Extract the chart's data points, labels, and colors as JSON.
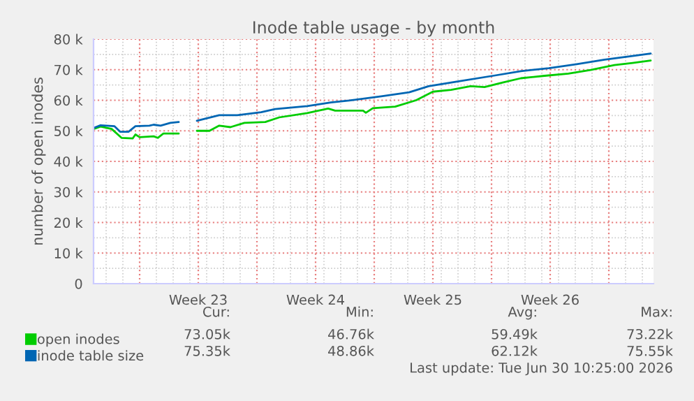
{
  "chart_data": {
    "type": "line",
    "title": "Inode table usage - by month",
    "ylabel": "number of open inodes",
    "xlim": [
      "2026-05-29T06:00",
      "2026-07-01T16:00"
    ],
    "xticks": [
      {
        "value": "2026-06-01",
        "label": null
      },
      {
        "value": "2026-06-04T12:00",
        "label": "Week 23"
      },
      {
        "value": "2026-06-08",
        "label": null
      },
      {
        "value": "2026-06-11T12:00",
        "label": "Week 24"
      },
      {
        "value": "2026-06-15",
        "label": null
      },
      {
        "value": "2026-06-18T12:00",
        "label": "Week 25"
      },
      {
        "value": "2026-06-22",
        "label": null
      },
      {
        "value": "2026-06-25T12:00",
        "label": "Week 26"
      },
      {
        "value": "2026-06-29",
        "label": null
      }
    ],
    "ylim": [
      0,
      80000
    ],
    "yticks": [
      0,
      {
        "value": 10000,
        "label": "10 k"
      },
      {
        "value": 20000,
        "label": "20 k"
      },
      {
        "value": 30000,
        "label": "30 k"
      },
      {
        "value": 40000,
        "label": "40 k"
      },
      {
        "value": 50000,
        "label": "50 k"
      },
      {
        "value": 60000,
        "label": "60 k"
      },
      {
        "value": 70000,
        "label": "70 k"
      },
      {
        "value": 80000,
        "label": "80 k"
      }
    ],
    "grid": true,
    "legend": "bottom left",
    "marker": "none",
    "line_style": "solid",
    "series": [
      {
        "name": "open inodes",
        "color": "#00cc00",
        "x": [
          "2026-05-29T06:00",
          "2026-05-29T16:00",
          "2026-05-30T08:00",
          "2026-05-30T22:00",
          "2026-05-31T14:00",
          "2026-05-31T18:00",
          "2026-06-01T00:00",
          "2026-06-01T20:00",
          "2026-06-02T02:00",
          "2026-06-02T10:00",
          "2026-06-03T08:00",
          "2026-06-03T20:00",
          "2026-06-04T10:00",
          "2026-06-05T04:00",
          "2026-06-05T18:00",
          "2026-06-06T10:00",
          "2026-06-07T06:00",
          "2026-06-08T12:00",
          "2026-06-09T08:00",
          "2026-06-11T00:00",
          "2026-06-12T06:00",
          "2026-06-12T16:00",
          "2026-06-14T08:00",
          "2026-06-14T12:00",
          "2026-06-14T22:00",
          "2026-06-16T06:00",
          "2026-06-17T12:00",
          "2026-06-18T12:00",
          "2026-06-19T14:00",
          "2026-06-20T18:00",
          "2026-06-21T14:00",
          "2026-06-22T16:00",
          "2026-06-23T18:00",
          "2026-06-25T04:00",
          "2026-06-26T14:00",
          "2026-06-27T22:00",
          "2026-06-29T08:00",
          "2026-06-30T10:00",
          "2026-07-01T12:00"
        ],
        "values": [
          50600,
          51400,
          50600,
          47700,
          47500,
          48800,
          47900,
          48200,
          47700,
          49100,
          49100,
          null,
          50000,
          50000,
          51700,
          51200,
          52600,
          52900,
          54400,
          55800,
          57300,
          56600,
          56600,
          55900,
          57400,
          57900,
          60000,
          62800,
          63400,
          64600,
          64300,
          65800,
          67200,
          68000,
          68700,
          69900,
          71500,
          72200,
          73000
        ]
      },
      {
        "name": "inode table size",
        "color": "#0066b3",
        "x": [
          "2026-05-29T06:00",
          "2026-05-29T16:00",
          "2026-05-30T12:00",
          "2026-05-30T20:00",
          "2026-05-31T08:00",
          "2026-05-31T18:00",
          "2026-06-01T14:00",
          "2026-06-01T20:00",
          "2026-06-02T06:00",
          "2026-06-02T20:00",
          "2026-06-03T08:00",
          "2026-06-03T20:00",
          "2026-06-04T10:00",
          "2026-06-05T18:00",
          "2026-06-06T20:00",
          "2026-06-08T06:00",
          "2026-06-09T02:00",
          "2026-06-11T00:00",
          "2026-06-12T10:00",
          "2026-06-13T12:00",
          "2026-06-15T10:00",
          "2026-06-17T02:00",
          "2026-06-18T06:00",
          "2026-06-19T22:00",
          "2026-06-22T02:00",
          "2026-06-23T18:00",
          "2026-06-25T10:00",
          "2026-06-27T02:00",
          "2026-06-28T18:00",
          "2026-06-30T10:00",
          "2026-07-01T12:00"
        ],
        "values": [
          50900,
          51800,
          51500,
          49700,
          49700,
          51500,
          51700,
          52000,
          51700,
          52600,
          52900,
          null,
          53300,
          55100,
          55100,
          56100,
          57100,
          58100,
          59300,
          59900,
          61300,
          62600,
          64600,
          66100,
          68000,
          69500,
          70500,
          71800,
          73300,
          74500,
          75300
        ]
      }
    ],
    "annotations": [
      "Cur:",
      "Min:",
      "Avg:",
      "Max:",
      "73.05k",
      "46.76k",
      "59.49k",
      "73.22k",
      "75.35k",
      "48.86k",
      "62.12k",
      "75.55k",
      "Last update: Tue Jun 30 10:25:00 2026"
    ]
  }
}
